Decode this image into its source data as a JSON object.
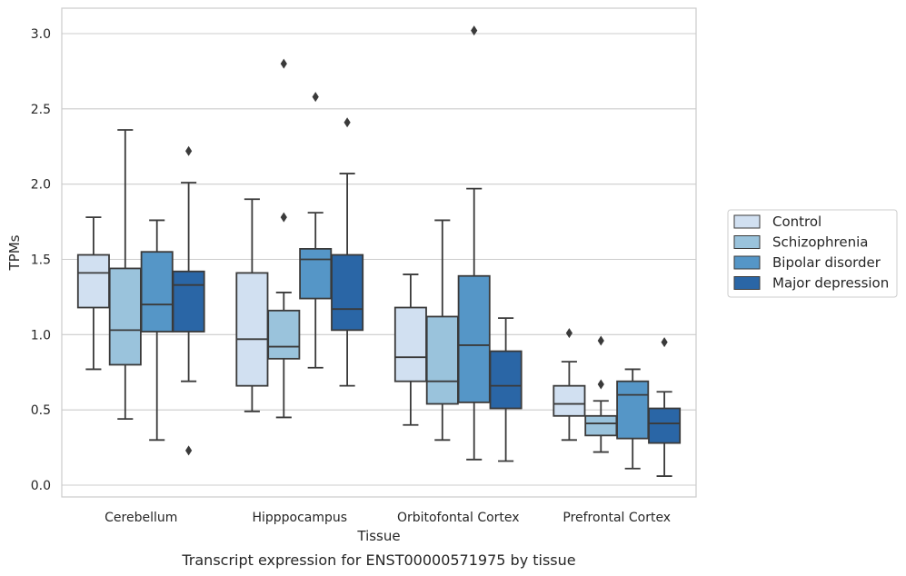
{
  "chart_data": {
    "type": "box",
    "xlabel": "Tissue",
    "ylabel": "TPMs",
    "caption": "Transcript expression for ENST00000571975 by tissue",
    "ylim": [
      -0.08,
      3.17
    ],
    "yticks": [
      "0.0",
      "0.5",
      "1.0",
      "1.5",
      "2.0",
      "2.5",
      "3.0"
    ],
    "grid": "horizontal",
    "legend_position": "right",
    "categories": [
      "Cerebellum",
      "Hipppocampus",
      "Orbitofontal Cortex",
      "Prefrontal Cortex"
    ],
    "series": [
      {
        "name": "Control",
        "color": "#d1e0f1",
        "boxes": [
          {
            "whislo": 0.77,
            "q1": 1.18,
            "med": 1.41,
            "q3": 1.53,
            "whishi": 1.78,
            "fliers": []
          },
          {
            "whislo": 0.49,
            "q1": 0.66,
            "med": 0.97,
            "q3": 1.41,
            "whishi": 1.9,
            "fliers": []
          },
          {
            "whislo": 0.4,
            "q1": 0.69,
            "med": 0.85,
            "q3": 1.18,
            "whishi": 1.4,
            "fliers": []
          },
          {
            "whislo": 0.3,
            "q1": 0.46,
            "med": 0.54,
            "q3": 0.66,
            "whishi": 0.82,
            "fliers": [
              1.01
            ]
          }
        ]
      },
      {
        "name": "Schizophrenia",
        "color": "#9ac3dc",
        "boxes": [
          {
            "whislo": 0.44,
            "q1": 0.8,
            "med": 1.03,
            "q3": 1.44,
            "whishi": 2.36,
            "fliers": []
          },
          {
            "whislo": 0.45,
            "q1": 0.84,
            "med": 0.92,
            "q3": 1.16,
            "whishi": 1.28,
            "fliers": [
              1.78,
              2.8
            ]
          },
          {
            "whislo": 0.3,
            "q1": 0.54,
            "med": 0.69,
            "q3": 1.12,
            "whishi": 1.76,
            "fliers": []
          },
          {
            "whislo": 0.22,
            "q1": 0.33,
            "med": 0.41,
            "q3": 0.46,
            "whishi": 0.56,
            "fliers": [
              0.67,
              0.96
            ]
          }
        ]
      },
      {
        "name": "Bipolar disorder",
        "color": "#5596c7",
        "boxes": [
          {
            "whislo": 0.3,
            "q1": 1.02,
            "med": 1.2,
            "q3": 1.55,
            "whishi": 1.76,
            "fliers": []
          },
          {
            "whislo": 0.78,
            "q1": 1.24,
            "med": 1.5,
            "q3": 1.57,
            "whishi": 1.81,
            "fliers": [
              2.58
            ]
          },
          {
            "whislo": 0.17,
            "q1": 0.55,
            "med": 0.93,
            "q3": 1.39,
            "whishi": 1.97,
            "fliers": [
              3.02
            ]
          },
          {
            "whislo": 0.11,
            "q1": 0.31,
            "med": 0.6,
            "q3": 0.69,
            "whishi": 0.77,
            "fliers": []
          }
        ]
      },
      {
        "name": "Major depression",
        "color": "#2a66a6",
        "boxes": [
          {
            "whislo": 0.69,
            "q1": 1.02,
            "med": 1.33,
            "q3": 1.42,
            "whishi": 2.01,
            "fliers": [
              0.23,
              2.22
            ]
          },
          {
            "whislo": 0.66,
            "q1": 1.03,
            "med": 1.17,
            "q3": 1.53,
            "whishi": 2.07,
            "fliers": [
              2.41
            ]
          },
          {
            "whislo": 0.16,
            "q1": 0.51,
            "med": 0.66,
            "q3": 0.89,
            "whishi": 1.11,
            "fliers": []
          },
          {
            "whislo": 0.06,
            "q1": 0.28,
            "med": 0.41,
            "q3": 0.51,
            "whishi": 0.62,
            "fliers": [
              0.95
            ]
          }
        ]
      }
    ]
  },
  "colors": {
    "grid": "#cccccc",
    "frame": "#cccccc",
    "box_edge": "#3a3a3a",
    "text": "#262626"
  }
}
